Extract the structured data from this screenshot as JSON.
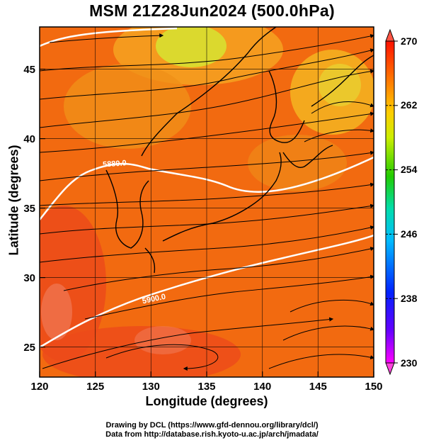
{
  "title": "MSM 21Z28Jun2024 (500.0hPa)",
  "xlabel": "Longitude (degrees)",
  "ylabel": "Latitude  (degrees)",
  "credits": [
    "Drawing by DCL (https://www.gfd-dennou.org/library/dcl/)",
    "Data from http://database.rish.kyoto-u.ac.jp/arch/jmadata/"
  ],
  "map": {
    "lon_range": [
      120,
      150
    ],
    "lat_range": [
      22.4,
      47.6
    ],
    "lon_ticks": [
      "120",
      "125",
      "130",
      "135",
      "140",
      "145",
      "150"
    ],
    "lat_ticks": [
      "25",
      "30",
      "35",
      "40",
      "45"
    ],
    "field": "temperature",
    "colorbar": {
      "min": 230,
      "max": 270,
      "tick_labels": [
        "230",
        "238",
        "246",
        "254",
        "262",
        "270"
      ],
      "colors": [
        "#ff00ff",
        "#2200ff",
        "#0099ff",
        "#00ddaa",
        "#44dd00",
        "#eeff00",
        "#ff8800",
        "#ff1100"
      ]
    },
    "contours": [
      {
        "label": "5880.0"
      },
      {
        "label": "5900.0"
      }
    ],
    "overlay": "wind streamlines"
  }
}
